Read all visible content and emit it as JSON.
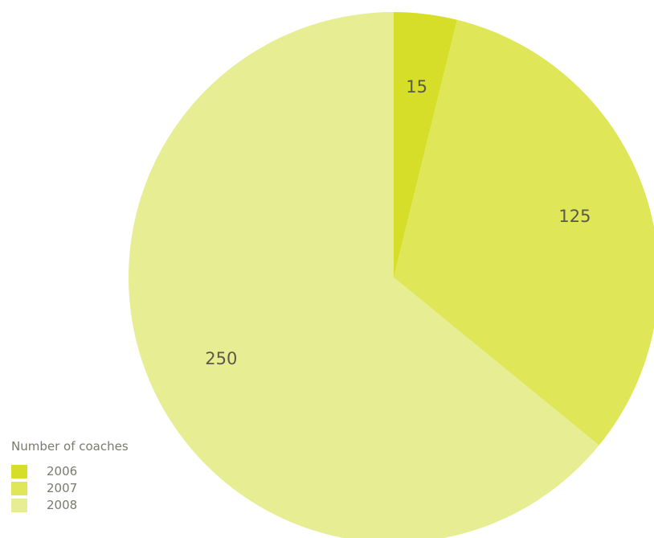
{
  "chart_data": {
    "type": "pie",
    "title": "",
    "legend_title": "Number of coaches",
    "legend_position": "bottom-left",
    "slices": [
      {
        "label": "2006",
        "value": 15,
        "color": "#d6de2a"
      },
      {
        "label": "2007",
        "value": 125,
        "color": "#dfe657"
      },
      {
        "label": "2008",
        "value": 250,
        "color": "#e7ed93"
      }
    ]
  }
}
